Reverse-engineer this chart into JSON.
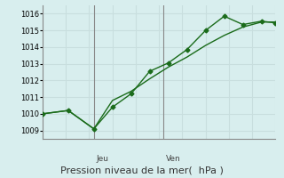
{
  "background_color": "#d8eeee",
  "grid_color": "#c8dede",
  "line_color": "#1a6b1a",
  "marker_color": "#1a6b1a",
  "xlabel": "Pression niveau de la mer(  hPa )",
  "xlabel_fontsize": 8,
  "ylim": [
    1008.5,
    1016.5
  ],
  "yticks": [
    1009,
    1010,
    1011,
    1012,
    1013,
    1014,
    1015,
    1016
  ],
  "vline_positions": [
    0.22,
    0.52
  ],
  "vline_labels": [
    "Jeu",
    "Ven"
  ],
  "series1_x": [
    0.0,
    0.11,
    0.22,
    0.3,
    0.38,
    0.46,
    0.54,
    0.62,
    0.7,
    0.78,
    0.86,
    0.94,
    1.0
  ],
  "series1_y": [
    1010.0,
    1010.2,
    1009.1,
    1010.4,
    1011.2,
    1012.55,
    1013.05,
    1013.85,
    1015.0,
    1015.85,
    1015.35,
    1015.55,
    1015.45
  ],
  "series2_x": [
    0.0,
    0.11,
    0.22,
    0.3,
    0.38,
    0.46,
    0.54,
    0.62,
    0.7,
    0.78,
    0.86,
    0.94,
    1.0
  ],
  "series2_y": [
    1010.0,
    1010.2,
    1009.1,
    1010.8,
    1011.35,
    1012.1,
    1012.8,
    1013.4,
    1014.1,
    1014.7,
    1015.2,
    1015.5,
    1015.5
  ]
}
